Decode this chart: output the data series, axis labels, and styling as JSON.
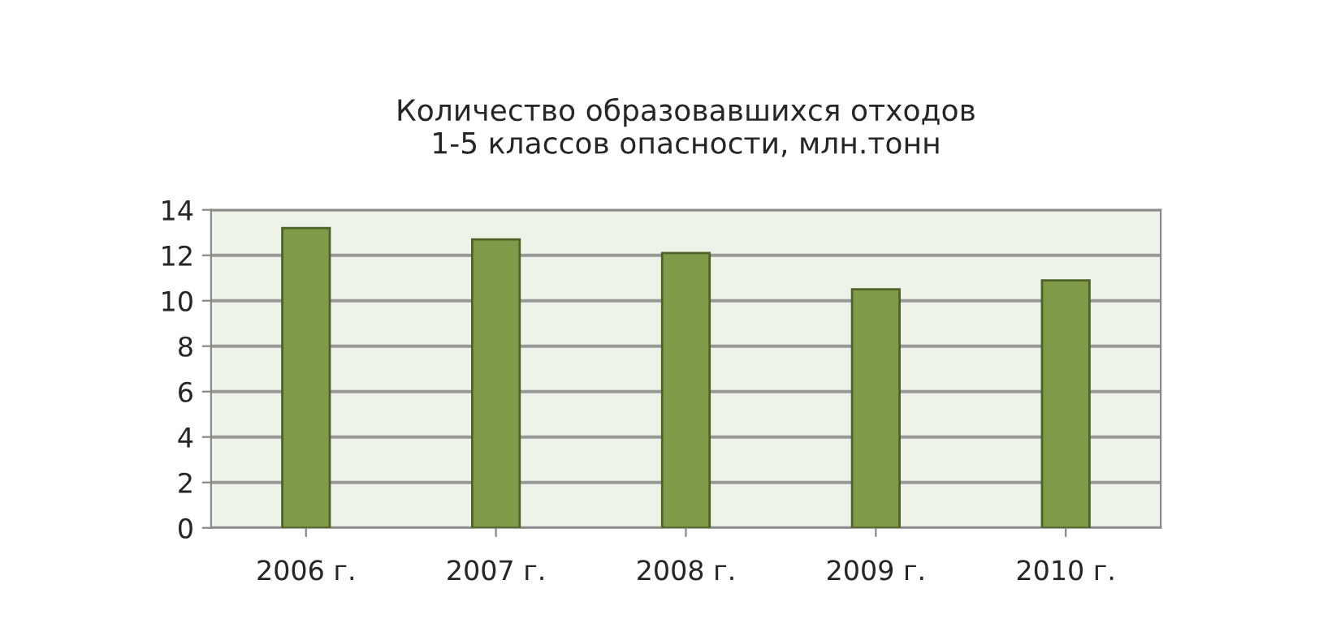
{
  "chart_data": {
    "type": "bar",
    "title": "Количество образовавшихся отходов\n1-5 классов опасности, млн.тонн",
    "categories": [
      "2006 г.",
      "2007 г.",
      "2008 г.",
      "2009 г.",
      "2010 г."
    ],
    "values": [
      13.2,
      12.7,
      12.1,
      10.5,
      10.9
    ],
    "color": "#7f9a48",
    "ylim": [
      0,
      14
    ],
    "yticks": [
      0,
      2,
      4,
      6,
      8,
      10,
      12,
      14
    ],
    "grid": "y",
    "legend": false
  }
}
